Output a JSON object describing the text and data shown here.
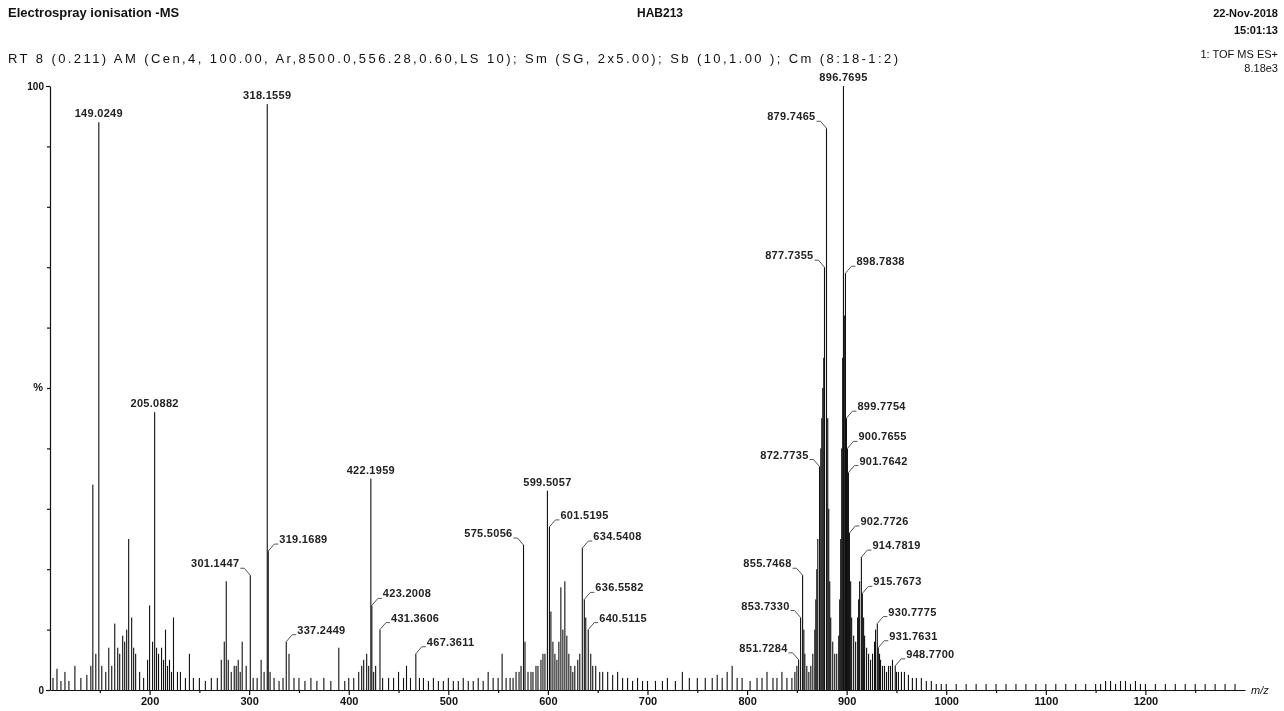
{
  "chart_data": {
    "type": "bar",
    "title": "Electrospray ionisation -MS",
    "subtitle": "RT 8 (0.211) AM (Cen,4, 100.00, Ar,8500.0,556.28,0.60,LS 10); Sm (SG, 2x5.00); Sb (10,1.00 ); Cm (8:18-1:2)",
    "xlabel": "m/z",
    "ylabel": "%",
    "color": "#111111",
    "annotations": [
      "HAB213",
      "22-Nov-2018",
      "15:01:13",
      "1: TOF MS ES+",
      "8.18e3",
      {
        "text": "149.0249",
        "x": 149.0249,
        "y": 94
      },
      {
        "text": "205.0882",
        "x": 205.0882,
        "y": 46
      },
      {
        "text": "301.1447",
        "x": 301.1447,
        "y": 19
      },
      {
        "text": "318.1559",
        "x": 318.1559,
        "y": 97
      },
      {
        "text": "319.1689",
        "x": 319.1689,
        "y": 23
      },
      {
        "text": "337.2449",
        "x": 337.2449,
        "y": 8
      },
      {
        "text": "422.1959",
        "x": 422.1959,
        "y": 35
      },
      {
        "text": "423.2008",
        "x": 423.2008,
        "y": 14
      },
      {
        "text": "431.3606",
        "x": 431.3606,
        "y": 10
      },
      {
        "text": "467.3611",
        "x": 467.3611,
        "y": 6
      },
      {
        "text": "575.5056",
        "x": 575.5056,
        "y": 24
      },
      {
        "text": "599.5057",
        "x": 599.5057,
        "y": 33
      },
      {
        "text": "601.5195",
        "x": 601.5195,
        "y": 27
      },
      {
        "text": "634.5408",
        "x": 634.5408,
        "y": 23.5
      },
      {
        "text": "636.5582",
        "x": 636.5582,
        "y": 15
      },
      {
        "text": "640.5115",
        "x": 640.5115,
        "y": 10
      },
      {
        "text": "851.7284",
        "x": 851.7284,
        "y": 5
      },
      {
        "text": "853.7330",
        "x": 853.733,
        "y": 12
      },
      {
        "text": "855.7468",
        "x": 855.7468,
        "y": 19
      },
      {
        "text": "872.7735",
        "x": 872.7735,
        "y": 37
      },
      {
        "text": "877.7355",
        "x": 877.7355,
        "y": 70
      },
      {
        "text": "879.7465",
        "x": 879.7465,
        "y": 93
      },
      {
        "text": "896.7695",
        "x": 896.7695,
        "y": 100
      },
      {
        "text": "898.7838",
        "x": 898.7838,
        "y": 69
      },
      {
        "text": "899.7754",
        "x": 899.7754,
        "y": 45
      },
      {
        "text": "900.7655",
        "x": 900.7655,
        "y": 40
      },
      {
        "text": "901.7642",
        "x": 901.7642,
        "y": 36
      },
      {
        "text": "902.7726",
        "x": 902.7726,
        "y": 26
      },
      {
        "text": "914.7819",
        "x": 914.7819,
        "y": 22
      },
      {
        "text": "915.7673",
        "x": 915.7673,
        "y": 16
      },
      {
        "text": "930.7775",
        "x": 930.7775,
        "y": 11
      },
      {
        "text": "931.7631",
        "x": 931.7631,
        "y": 7
      },
      {
        "text": "948.7700",
        "x": 948.77,
        "y": 4
      }
    ],
    "x": [
      103,
      107,
      111,
      115,
      119,
      125,
      131,
      137,
      141,
      143,
      146,
      149.0249,
      152,
      156,
      159,
      162,
      165,
      168,
      170,
      173,
      175,
      177,
      179,
      182,
      184,
      186,
      190,
      194,
      198,
      200,
      203,
      205.0882,
      207,
      209,
      212,
      214,
      216,
      218,
      220,
      222,
      224,
      228,
      231,
      236,
      240,
      244,
      250,
      256,
      262,
      268,
      272,
      275,
      277,
      279,
      282,
      285,
      287,
      289,
      291,
      293,
      297,
      301.1447,
      304,
      308,
      312,
      315,
      318.1559,
      319.1689,
      321,
      325,
      330,
      334,
      337.2449,
      340,
      345,
      350,
      356,
      362,
      368,
      375,
      382,
      390,
      396,
      400,
      405,
      410,
      413,
      415,
      418,
      420,
      422.1959,
      423.2008,
      425,
      427,
      431.3606,
      434,
      440,
      445,
      450,
      455,
      458,
      462,
      467.3611,
      471,
      475,
      480,
      485,
      490,
      495,
      500,
      505,
      510,
      515,
      520,
      525,
      530,
      535,
      540,
      545,
      550,
      554,
      558,
      562,
      565,
      568,
      571,
      573,
      575.5056,
      577,
      580,
      583,
      585,
      588,
      590,
      593,
      595,
      597,
      599.5057,
      601.5195,
      603,
      605,
      607,
      609,
      611,
      613,
      615,
      617,
      619,
      621,
      623,
      625,
      627,
      630,
      632,
      634.5408,
      636.5582,
      638,
      640.5115,
      643,
      645,
      648,
      652,
      655,
      660,
      665,
      670,
      675,
      680,
      685,
      690,
      695,
      700,
      708,
      715,
      720,
      728,
      735,
      742,
      750,
      758,
      765,
      770,
      775,
      780,
      785,
      790,
      795,
      803,
      810,
      815,
      820,
      826,
      830,
      835,
      840,
      845,
      848,
      850,
      851.7284,
      853.733,
      855.7468,
      857,
      858,
      860,
      862,
      864,
      866,
      868,
      869,
      870,
      871,
      872.7735,
      874,
      875,
      876,
      877,
      877.7355,
      879.7465,
      881,
      882,
      883,
      884,
      886,
      888,
      890,
      892,
      893,
      894,
      895,
      896,
      896.7695,
      898,
      898.7838,
      899.7754,
      900.7655,
      901.7642,
      902.7726,
      904,
      905,
      907,
      909,
      911,
      912,
      913,
      914.7819,
      915.7673,
      917,
      918,
      920,
      922,
      924,
      926,
      928,
      929,
      930.7775,
      931.7631,
      933,
      934,
      936,
      938,
      940,
      942,
      944,
      946,
      948.77,
      950,
      952,
      955,
      958,
      962,
      966,
      970,
      975,
      980,
      985,
      990,
      995,
      1000,
      1010,
      1020,
      1030,
      1040,
      1050,
      1060,
      1070,
      1080,
      1090,
      1100,
      1110,
      1120,
      1130,
      1140,
      1150,
      1155,
      1160,
      1165,
      1170,
      1175,
      1180,
      1185,
      1190,
      1195,
      1200,
      1210,
      1220,
      1230,
      1240,
      1250,
      1260,
      1270,
      1280,
      1290
    ],
    "values": [
      2,
      3.5,
      1.5,
      3,
      1.5,
      4,
      2,
      2.5,
      4,
      34,
      6,
      94,
      4,
      3,
      7,
      4,
      11,
      7,
      6,
      9,
      8,
      10,
      25,
      12,
      7,
      6,
      3,
      2,
      5,
      14,
      8,
      46,
      7,
      6,
      7,
      5,
      10,
      4,
      5,
      3,
      12,
      3,
      3,
      2,
      6,
      2,
      2,
      1.5,
      2,
      2,
      5,
      8,
      18,
      5,
      3,
      4,
      4,
      5,
      3,
      8,
      4,
      19,
      2,
      2,
      5,
      3,
      97,
      23,
      3,
      2,
      1.5,
      2,
      8,
      6,
      2,
      2,
      1.5,
      2,
      1.5,
      2,
      1.5,
      7,
      1.5,
      2,
      2,
      3,
      4,
      5,
      6,
      4,
      35,
      14,
      3,
      4,
      10,
      2,
      2,
      2,
      3,
      2,
      4,
      2,
      6,
      2,
      2,
      1.5,
      2,
      1.5,
      1.5,
      2,
      1.5,
      1.5,
      2,
      1.5,
      1.5,
      2,
      1.5,
      3,
      2,
      2,
      6,
      2,
      2,
      2,
      3,
      3,
      4,
      24,
      8,
      3,
      3,
      3,
      4,
      4,
      5,
      6,
      6,
      33,
      27,
      13,
      8,
      6,
      5,
      8,
      17,
      10,
      18,
      9,
      6,
      4,
      3,
      4,
      5,
      6,
      23.5,
      15,
      12,
      10,
      6,
      4,
      4,
      3,
      3,
      3,
      2.5,
      3,
      2,
      2,
      1.5,
      2,
      1.5,
      1.5,
      1.5,
      1.5,
      2,
      1.5,
      3,
      2,
      2,
      2,
      2,
      2.5,
      2,
      3,
      4,
      2,
      2,
      1.5,
      2,
      2,
      3,
      2,
      2,
      3,
      2,
      2,
      3,
      4,
      5,
      12,
      19,
      10,
      6,
      4,
      3,
      4,
      6,
      10,
      15,
      20,
      25,
      37,
      40,
      45,
      50,
      55,
      70,
      93,
      45,
      30,
      18,
      12,
      8,
      6,
      6,
      9,
      15,
      25,
      40,
      55,
      100,
      62,
      69,
      45,
      40,
      36,
      26,
      18,
      12,
      9,
      8,
      12,
      15,
      18,
      22,
      16,
      12,
      9,
      7,
      6,
      5,
      6,
      8,
      10,
      11,
      7,
      6,
      5,
      4,
      4,
      3,
      4,
      4,
      5,
      4,
      3,
      3,
      3,
      3,
      2.5,
      2,
      2,
      2,
      1.5,
      1.5,
      1,
      1,
      1,
      1,
      1,
      1,
      1,
      1,
      1,
      1,
      1,
      1,
      1,
      1,
      1,
      1,
      1,
      1,
      1,
      1.5,
      1.5,
      1,
      1.5,
      1.5,
      1,
      1.5,
      1,
      1,
      1,
      1,
      1,
      1,
      1,
      1,
      1,
      1,
      1
    ],
    "xlim": [
      100,
      1300
    ],
    "ylim": [
      0,
      100
    ],
    "xticks": [
      {
        "value": 150,
        "label": null
      },
      200,
      {
        "value": 250,
        "label": null
      },
      300,
      {
        "value": 350,
        "label": null
      },
      400,
      {
        "value": 450,
        "label": null
      },
      500,
      {
        "value": 550,
        "label": null
      },
      600,
      {
        "value": 650,
        "label": null
      },
      700,
      {
        "value": 750,
        "label": null
      },
      800,
      {
        "value": 850,
        "label": null
      },
      900,
      {
        "value": 950,
        "label": null
      },
      1000,
      {
        "value": 1050,
        "label": null
      },
      1100,
      {
        "value": 1150,
        "label": null
      },
      1200,
      {
        "value": 1250,
        "label": null
      }
    ],
    "yticks": [
      0,
      {
        "value": 10,
        "label": null
      },
      {
        "value": 20,
        "label": null
      },
      {
        "value": 30,
        "label": null
      },
      {
        "value": 40,
        "label": null
      },
      {
        "value": 50,
        "label": null
      },
      {
        "value": 60,
        "label": null
      },
      {
        "value": 70,
        "label": null
      },
      {
        "value": 80,
        "label": null
      },
      {
        "value": 90,
        "label": null
      },
      100
    ]
  }
}
